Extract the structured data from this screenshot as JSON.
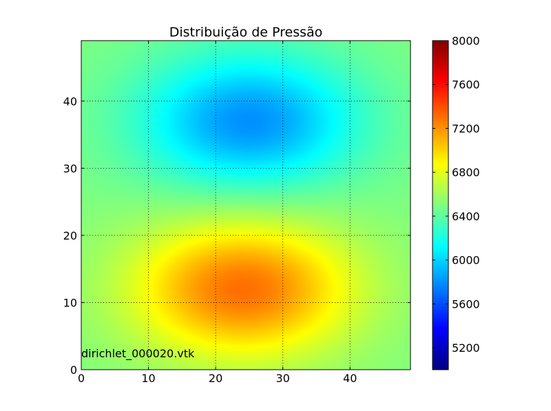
{
  "chart_data": {
    "type": "heatmap",
    "title": "Distribuição de Pressão",
    "annotation": "dirichlet_000020.vtk",
    "xlim": [
      0,
      49
    ],
    "ylim": [
      0,
      49
    ],
    "x_ticks": [
      0,
      10,
      20,
      30,
      40
    ],
    "y_ticks": [
      0,
      10,
      20,
      30,
      40
    ],
    "grid": true,
    "colormap": "jet",
    "colorbar": {
      "range": [
        5000,
        8000
      ],
      "ticks": [
        5200,
        5600,
        6000,
        6400,
        6800,
        7200,
        7600,
        8000
      ]
    },
    "field": {
      "base": 6500,
      "features": [
        {
          "kind": "high",
          "center": [
            24,
            12
          ],
          "peak": 7300
        },
        {
          "kind": "low",
          "center": [
            25,
            37
          ],
          "trough": 5800
        }
      ]
    }
  }
}
